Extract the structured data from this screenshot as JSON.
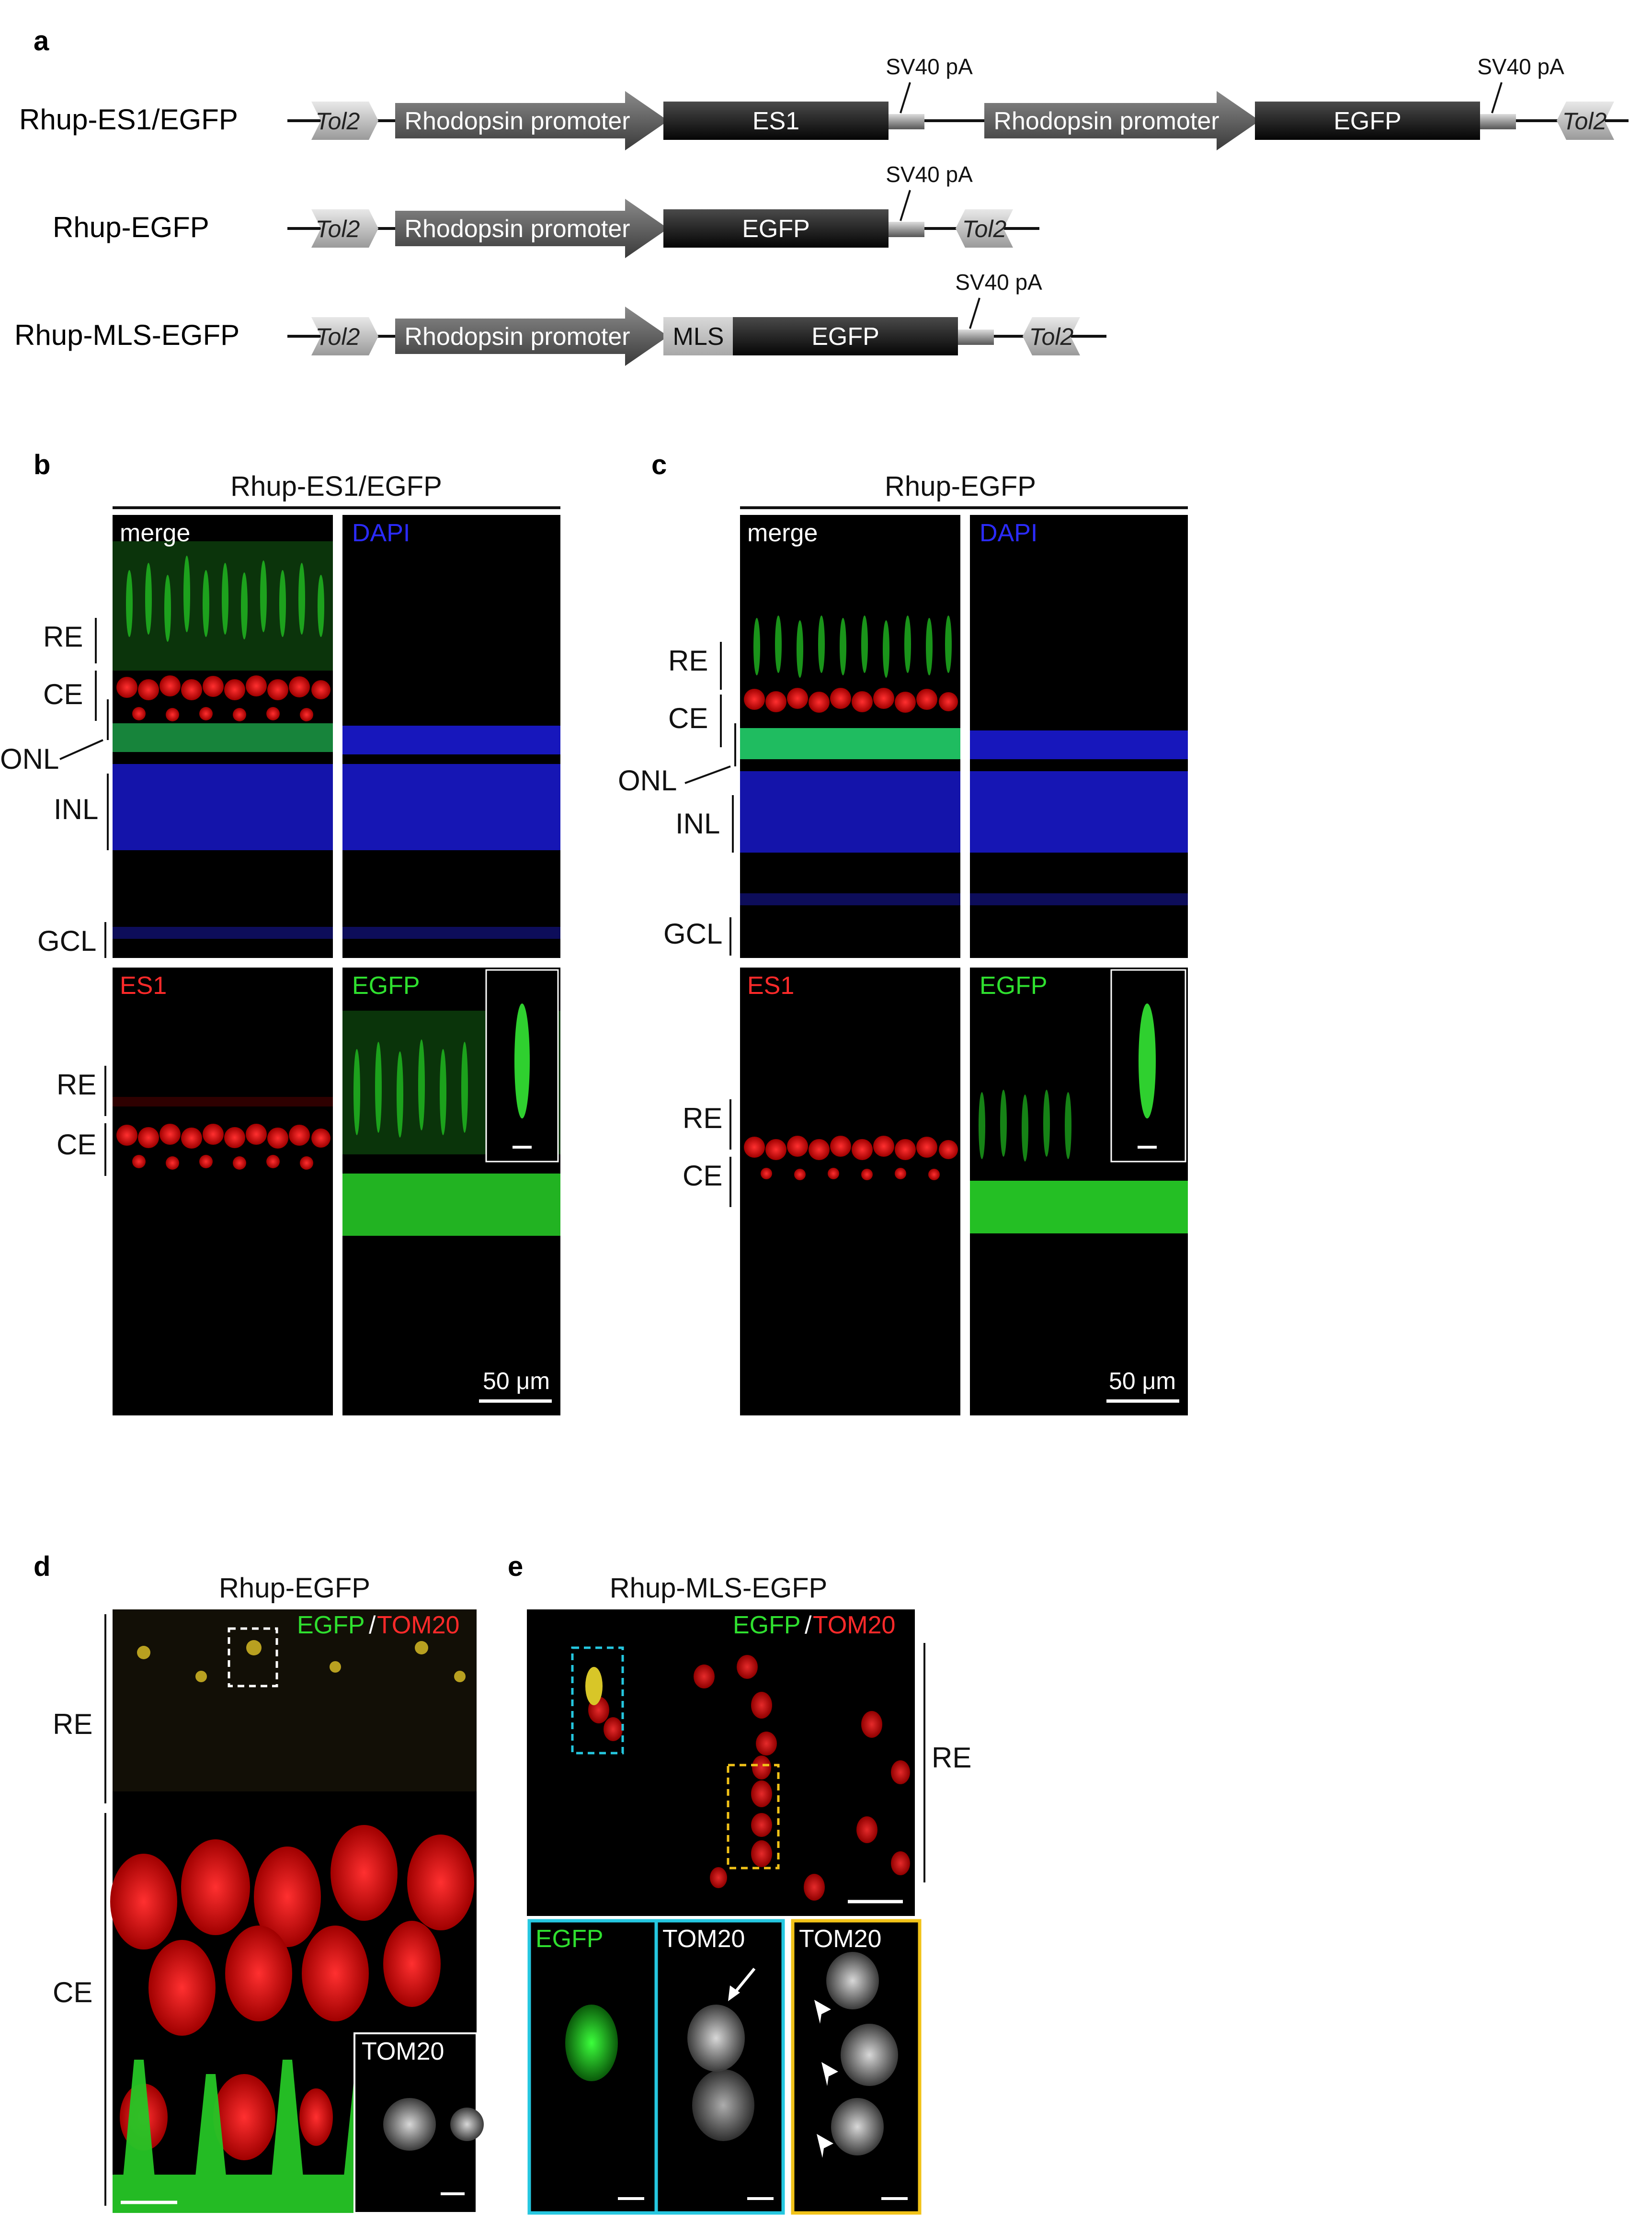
{
  "panel_labels": {
    "a": "a",
    "b": "b",
    "c": "c",
    "d": "d",
    "e": "e"
  },
  "panel_a": {
    "constructs": [
      {
        "name": "Rhup-ES1/EGFP"
      },
      {
        "name": "Rhup-EGFP"
      },
      {
        "name": "Rhup-MLS-EGFP"
      }
    ],
    "tol2": "Tol2",
    "promoter": "Rhodopsin promoter",
    "es1": "ES1",
    "egfp": "EGFP",
    "mls": "MLS",
    "sv40": "SV40 pA"
  },
  "panel_b": {
    "title": "Rhup-ES1/EGFP",
    "channels": {
      "merge": "merge",
      "dapi": "DAPI",
      "es1": "ES1",
      "egfp": "EGFP"
    },
    "layers": {
      "re": "RE",
      "ce": "CE",
      "onl": "ONL",
      "inl": "INL",
      "gcl": "GCL"
    },
    "scale_bar": "50 μm"
  },
  "panel_c": {
    "title": "Rhup-EGFP",
    "channels": {
      "merge": "merge",
      "dapi": "DAPI",
      "es1": "ES1",
      "egfp": "EGFP"
    },
    "layers": {
      "re": "RE",
      "ce": "CE",
      "onl": "ONL",
      "inl": "INL",
      "gcl": "GCL"
    },
    "scale_bar": "50 μm"
  },
  "panel_d": {
    "title": "Rhup-EGFP",
    "egfp": "EGFP",
    "slash": "/",
    "tom20": "TOM20",
    "layers": {
      "re": "RE",
      "ce": "CE"
    },
    "inset": "TOM20"
  },
  "panel_e": {
    "title": "Rhup-MLS-EGFP",
    "egfp": "EGFP",
    "slash": "/",
    "tom20": "TOM20",
    "layer": "RE",
    "insets": {
      "egfp": "EGFP",
      "tom20_a": "TOM20",
      "tom20_b": "TOM20"
    }
  },
  "colors": {
    "merge_label": "#ffffff",
    "dapi": "#2b2bff",
    "es1": "#ff2a2a",
    "egfp": "#2fe02f",
    "cyan_box": "#25c7e0",
    "yellow_box": "#f2c318"
  }
}
